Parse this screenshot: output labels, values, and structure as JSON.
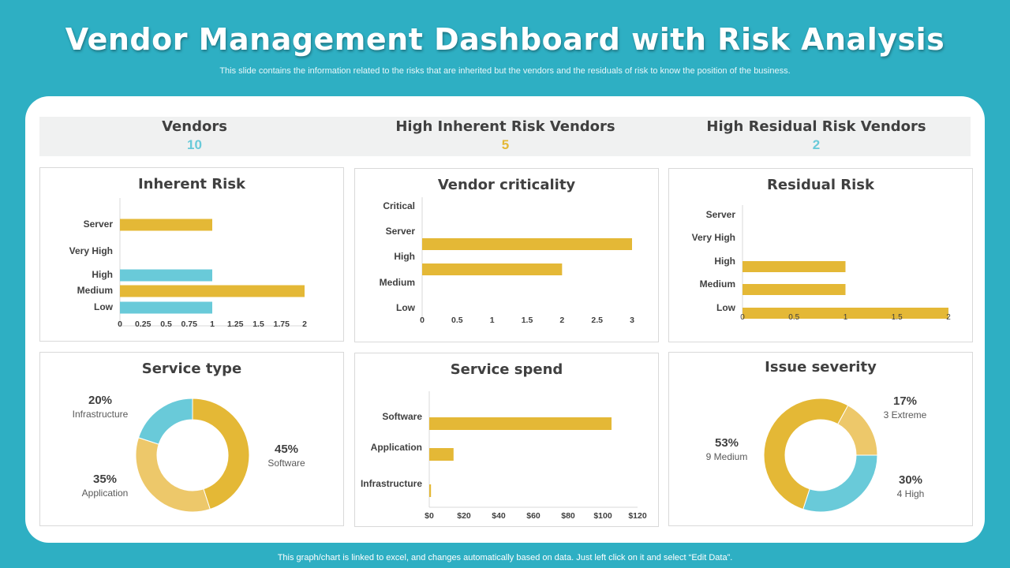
{
  "title": "Vendor Management Dashboard with Risk Analysis",
  "subtitle": "This slide contains the information related to the risks  that are inherited but  the vendors and the residuals of risk to know the position of the business.",
  "footer": "This graph/chart is linked to excel,  and changes automatically based on data. Just left click on it and select “Edit Data”.",
  "colors": {
    "background": "#2eafc3",
    "gold": "#e4b836",
    "light_gold": "#edc86a",
    "blue": "#69cad9"
  },
  "kpis": [
    {
      "label": "Vendors",
      "value": "10",
      "color": "#69cad9"
    },
    {
      "label": "High Inherent Risk Vendors",
      "value": "5",
      "color": "#e4b836"
    },
    {
      "label": "High Residual Risk Vendors",
      "value": "2",
      "color": "#69cad9"
    }
  ],
  "chart_data": [
    {
      "type": "bar",
      "orientation": "horizontal",
      "title": "Inherent Risk",
      "categories": [
        "Server",
        "Very High",
        "High",
        "Medium",
        "Low"
      ],
      "values": [
        1,
        0,
        1,
        2,
        1
      ],
      "bar_colors": [
        "#e4b836",
        "#e4b836",
        "#69cad9",
        "#e4b836",
        "#69cad9"
      ],
      "xlim": [
        0,
        2
      ],
      "ticks": [
        "0",
        "0.25",
        "0.5",
        "0.75",
        "1",
        "1.25",
        "1.5",
        "1.75",
        "2"
      ]
    },
    {
      "type": "bar",
      "orientation": "horizontal",
      "title": "Vendor criticality",
      "categories": [
        "Critical",
        "Server",
        "High",
        "Medium",
        "Low"
      ],
      "values": [
        0,
        3,
        2,
        0,
        0
      ],
      "xlim": [
        0,
        3
      ],
      "ticks": [
        "0",
        "0.5",
        "1",
        "1.5",
        "2",
        "2.5",
        "3"
      ]
    },
    {
      "type": "bar",
      "orientation": "horizontal",
      "title": "Residual Risk",
      "categories": [
        "Server",
        "Very High",
        "High",
        "Medium",
        "Low"
      ],
      "values": [
        0,
        0,
        1,
        1,
        2
      ],
      "xlim": [
        0,
        2
      ],
      "ticks": [
        "0",
        "0.5",
        "1",
        "1.5",
        "2"
      ]
    },
    {
      "type": "pie",
      "donut": true,
      "title": "Service type",
      "slices": [
        {
          "pct": "45%",
          "label": "Software",
          "value": 45,
          "color": "#e4b836"
        },
        {
          "pct": "35%",
          "label": "Application",
          "value": 35,
          "color": "#edc86a"
        },
        {
          "pct": "20%",
          "label": "Infrastructure",
          "value": 20,
          "color": "#69cad9"
        }
      ]
    },
    {
      "type": "bar",
      "orientation": "horizontal",
      "title": "Service spend",
      "categories": [
        "Software",
        "Application",
        "Infrastructure"
      ],
      "values": [
        105,
        14,
        1
      ],
      "xlim": [
        0,
        120
      ],
      "ticks": [
        "$0",
        "$20",
        "$40",
        "$60",
        "$80",
        "$100",
        "$120"
      ]
    },
    {
      "type": "pie",
      "donut": true,
      "title": "Issue severity",
      "slices": [
        {
          "pct": "17%",
          "label": "3 Extreme",
          "value": 17,
          "color": "#edc86a"
        },
        {
          "pct": "30%",
          "label": "4 High",
          "value": 30,
          "color": "#69cad9"
        },
        {
          "pct": "53%",
          "label": "9 Medium",
          "value": 53,
          "color": "#e4b836"
        }
      ]
    }
  ]
}
